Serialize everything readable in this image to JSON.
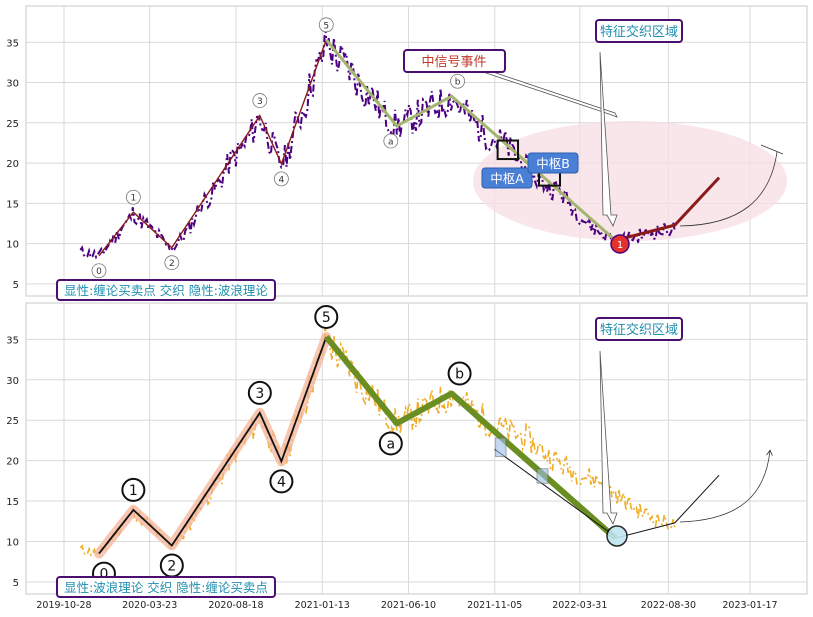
{
  "colors": {
    "price_top": "#4b0082",
    "price_bottom": "#f0ad2a",
    "chan_line": "#8b1a1a",
    "chan_halo": "#f4b49b",
    "wave_down": "#a3b56e",
    "wave_down_bold": "#6b8e23",
    "zhongshu_fill": "#4a7fd6",
    "zone_fill": "#f7dde3",
    "label_text": "#1f8fb0",
    "label_border": "#4b0f70",
    "signal_text": "#c0392b",
    "buy_point": "#e4322b"
  },
  "chart_data": [
    {
      "type": "line",
      "panel": "top",
      "x_ticks": [
        "2019-10-28",
        "2020-03-23",
        "2020-08-18",
        "2021-01-13",
        "2021-06-10",
        "2021-11-05",
        "2022-03-31",
        "2022-08-30",
        "2023-01-17"
      ],
      "ylim": [
        3.5,
        39.5
      ],
      "y_ticks": [
        5,
        10,
        15,
        20,
        25,
        30,
        35
      ],
      "grid": true,
      "wave_points": [
        {
          "label": "0",
          "date": "2019-12-27",
          "value": 8.5
        },
        {
          "label": "1",
          "date": "2020-02-24",
          "value": 13.9
        },
        {
          "label": "2",
          "date": "2020-04-30",
          "value": 9.5
        },
        {
          "label": "3",
          "date": "2020-09-28",
          "value": 25.9
        },
        {
          "label": "4",
          "date": "2020-11-04",
          "value": 19.9
        },
        {
          "label": "5",
          "date": "2021-01-20",
          "value": 35.3
        },
        {
          "label": "a",
          "date": "2021-05-21",
          "value": 24.6
        },
        {
          "label": "b",
          "date": "2021-08-23",
          "value": 28.3
        },
        {
          "label": "1",
          "date": "2022-05-31",
          "value": 10.4
        }
      ],
      "down_wave": [
        [
          "2021-01-20",
          35.3
        ],
        [
          "2021-05-21",
          24.6
        ],
        [
          "2021-08-23",
          28.3
        ],
        [
          "2022-05-31",
          10.4
        ]
      ],
      "up_projection": [
        [
          "2022-09-10",
          12.3
        ],
        [
          "2022-11-25",
          18.2
        ]
      ],
      "zhongshu": [
        {
          "label": "中枢A",
          "date_start": "2021-11-10",
          "date_end": "2021-12-15",
          "low": 20.5,
          "high": 22.8
        },
        {
          "label": "中枢B",
          "date_start": "2022-01-20",
          "date_end": "2022-02-25",
          "low": 17.2,
          "high": 19.0
        }
      ],
      "signal_event_label": "中信号事件",
      "feature_zone_label": "特征交织区域",
      "buy_point_label": "1",
      "caption": "显性:缠论买卖点 交织 隐性:波浪理论"
    },
    {
      "type": "line",
      "panel": "bottom",
      "x_ticks": [
        "2019-10-28",
        "2020-03-23",
        "2020-08-18",
        "2021-01-13",
        "2021-06-10",
        "2021-11-05",
        "2022-03-31",
        "2022-08-30",
        "2023-01-17"
      ],
      "ylim": [
        3.5,
        39.5
      ],
      "y_ticks": [
        5,
        10,
        15,
        20,
        25,
        30,
        35
      ],
      "grid": true,
      "wave_points": [
        {
          "label": "0",
          "date": "2019-12-27",
          "value": 8.5
        },
        {
          "label": "1",
          "date": "2020-02-24",
          "value": 13.9
        },
        {
          "label": "2",
          "date": "2020-04-30",
          "value": 9.5
        },
        {
          "label": "3",
          "date": "2020-09-28",
          "value": 25.9
        },
        {
          "label": "4",
          "date": "2020-11-04",
          "value": 19.9
        },
        {
          "label": "5",
          "date": "2021-01-20",
          "value": 35.3
        },
        {
          "label": "a",
          "date": "2021-05-21",
          "value": 24.6
        },
        {
          "label": "b",
          "date": "2021-08-23",
          "value": 28.3
        }
      ],
      "feature_zone_label": "特征交织区域",
      "caption": "显性:波浪理论 交织 隐性:缠论买卖点"
    }
  ]
}
